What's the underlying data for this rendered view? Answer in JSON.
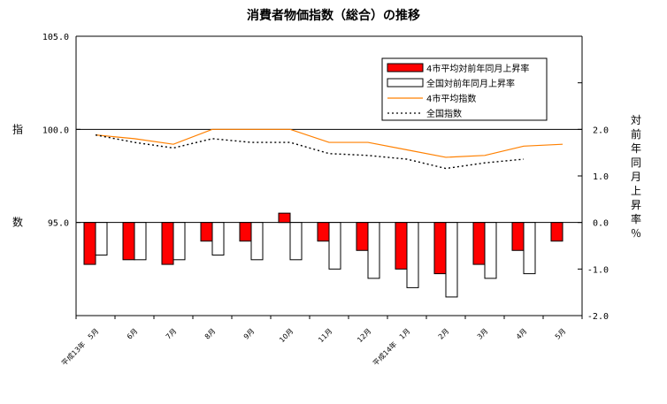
{
  "chart_data": {
    "type": "bar",
    "title": "消費者物価指数（総合）の推移",
    "categories": [
      "平成13年　5月",
      "6月",
      "7月",
      "8月",
      "9月",
      "10月",
      "11月",
      "12月",
      "平成14年　1月",
      "2月",
      "3月",
      "4月",
      "5月"
    ],
    "left_axis": {
      "label_top": "指",
      "label_bottom": "数",
      "ylim": [
        90.0,
        105.0
      ],
      "ticks": [
        "105.0",
        "100.0",
        "95.0"
      ]
    },
    "right_axis": {
      "label": "対前年同月上昇率",
      "unit": "％",
      "ylim": [
        -2.0,
        4.0
      ],
      "ticks": [
        "2.0",
        "1.0",
        "0.0",
        "-1.0",
        "-2.0"
      ]
    },
    "series": [
      {
        "name": "4市平均対前年同月上昇率",
        "type": "bar",
        "axis": "right",
        "color": "#ff0000",
        "values": [
          -0.9,
          -0.8,
          -0.9,
          -0.4,
          -0.4,
          0.2,
          -0.4,
          -0.6,
          -1.0,
          -1.1,
          -0.9,
          -0.6,
          -0.4
        ]
      },
      {
        "name": "全国対前年同月上昇率",
        "type": "bar",
        "axis": "right",
        "color": "#ffffff",
        "values": [
          -0.7,
          -0.8,
          -0.8,
          -0.7,
          -0.8,
          -0.8,
          -1.0,
          -1.2,
          -1.4,
          -1.6,
          -1.2,
          -1.1,
          null
        ]
      },
      {
        "name": "4市平均指数",
        "type": "line",
        "axis": "left",
        "color": "#ff8000",
        "values": [
          99.7,
          99.5,
          99.2,
          100.0,
          100.0,
          100.0,
          99.3,
          99.3,
          98.9,
          98.5,
          98.6,
          99.1,
          99.2
        ]
      },
      {
        "name": "全国指数",
        "type": "line",
        "axis": "left",
        "dashed": true,
        "color": "#000000",
        "values": [
          99.7,
          99.3,
          99.0,
          99.5,
          99.3,
          99.3,
          98.7,
          98.6,
          98.4,
          97.9,
          98.2,
          98.4,
          null
        ]
      }
    ],
    "legend_position": "top-right",
    "grid": false
  }
}
